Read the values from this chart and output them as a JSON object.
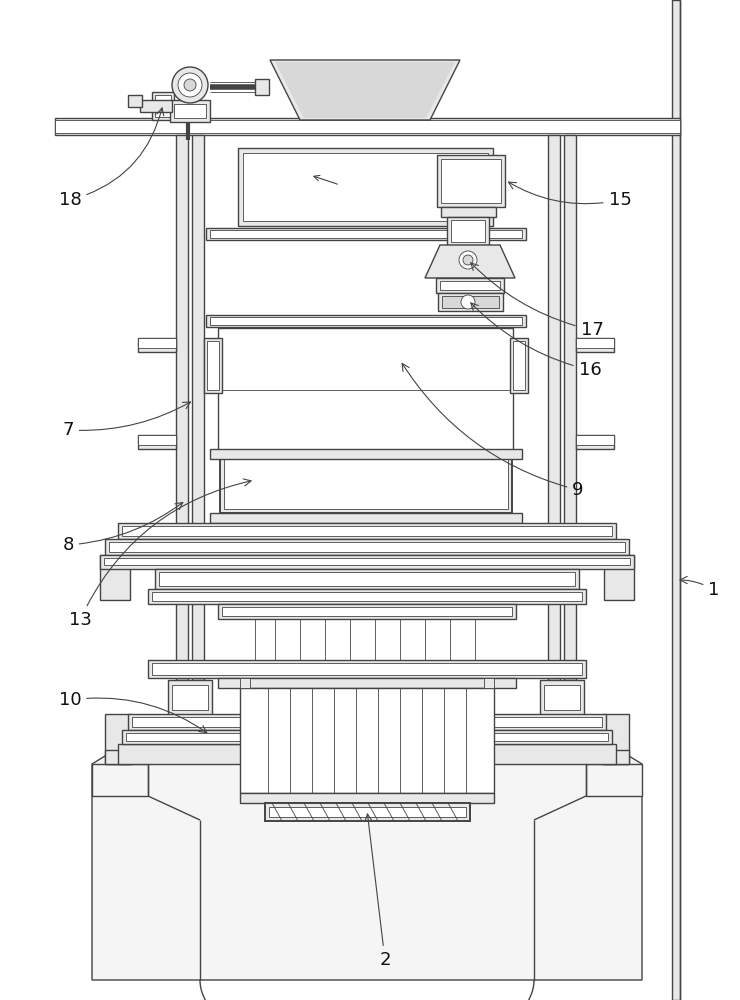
{
  "bg_color": "#ffffff",
  "lc": "#444444",
  "fc_light": "#e8e8e8",
  "fc_mid": "#d8d8d8",
  "fc_white": "#ffffff",
  "fig_width": 7.4,
  "fig_height": 10.0,
  "lw_main": 1.0,
  "lw_thin": 0.6,
  "lw_thick": 1.4,
  "label_fs": 13
}
